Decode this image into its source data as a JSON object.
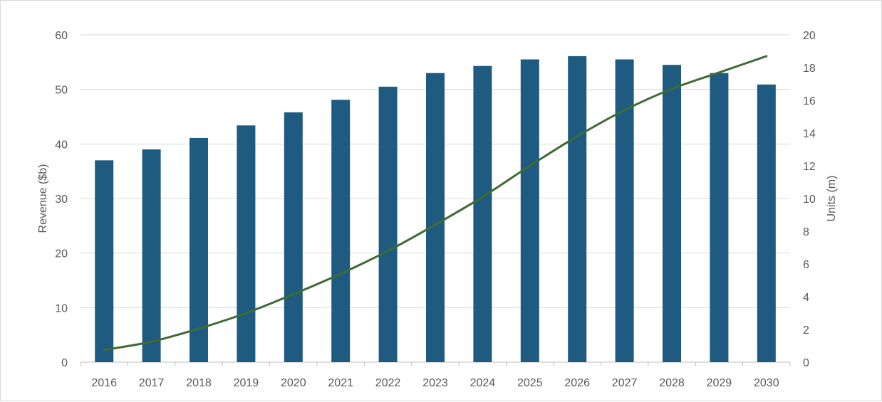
{
  "chart_data": {
    "type": "bar",
    "categories": [
      "2016",
      "2017",
      "2018",
      "2019",
      "2020",
      "2021",
      "2022",
      "2023",
      "2024",
      "2025",
      "2026",
      "2027",
      "2028",
      "2029",
      "2030"
    ],
    "series": [
      {
        "type": "bar",
        "axis": "left",
        "color": "#1f5a80",
        "values": [
          37,
          39,
          41.1,
          43.4,
          45.8,
          48.1,
          50.5,
          53,
          54.3,
          55.5,
          56.1,
          55.5,
          54.5,
          53,
          50.9
        ]
      },
      {
        "type": "line",
        "axis": "right",
        "color": "#3f6b35",
        "values": [
          0.75,
          1.25,
          2.05,
          3.0,
          4.15,
          5.4,
          6.8,
          8.4,
          10.1,
          12.0,
          13.8,
          15.4,
          16.7,
          17.7,
          18.7
        ]
      }
    ],
    "ylabel": "Revenue ($b)",
    "y2label": "Units (m)",
    "ylim": [
      0,
      60
    ],
    "y2lim": [
      0,
      20
    ],
    "yticks": [
      0,
      10,
      20,
      30,
      40,
      50,
      60
    ],
    "y2ticks": [
      0,
      2,
      4,
      6,
      8,
      10,
      12,
      14,
      16,
      18,
      20
    ],
    "grid": true,
    "legend": "none"
  }
}
